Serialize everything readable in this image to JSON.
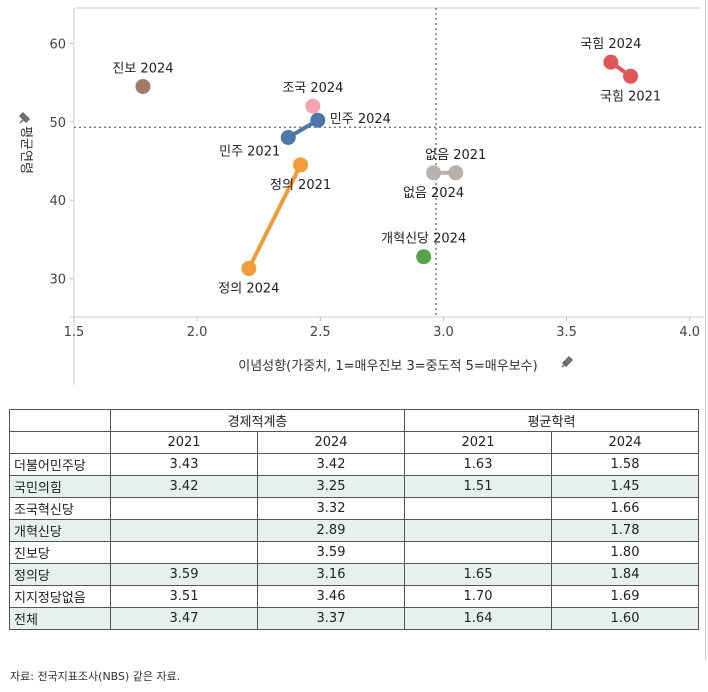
{
  "chart_data": {
    "type": "scatter",
    "xlabel": "이념성향(가중치, 1=매우진보 3=중도적 5=매우보수)",
    "ylabel": "평균연령",
    "xlim": [
      1.5,
      4.05
    ],
    "ylim": [
      25.5,
      64.5
    ],
    "xticks": [
      1.5,
      2.0,
      2.5,
      3.0,
      3.5,
      4.0
    ],
    "xtick_labels": [
      "1.5",
      "2.0",
      "2.5",
      "3.0",
      "3.5",
      "4.0"
    ],
    "yticks": [
      30,
      40,
      50,
      60
    ],
    "ytick_labels": [
      "30",
      "40",
      "50",
      "60"
    ],
    "ref_x": 2.97,
    "ref_y": 49.3,
    "grid": false,
    "points": [
      {
        "label": "진보 2024",
        "x": 1.78,
        "y": 54.5,
        "color": "#a27a68",
        "group": "jinbo",
        "label_pos": "above"
      },
      {
        "label": "조국 2024",
        "x": 2.47,
        "y": 52.0,
        "color": "#f5a3b0",
        "group": "jogook",
        "label_pos": "above"
      },
      {
        "label": "민주 2021",
        "x": 2.37,
        "y": 48.0,
        "color": "#4e76a8",
        "group": "minju",
        "label_pos": "below-left"
      },
      {
        "label": "민주 2024",
        "x": 2.49,
        "y": 50.2,
        "color": "#4e76a8",
        "group": "minju",
        "label_pos": "right"
      },
      {
        "label": "정의 2021",
        "x": 2.42,
        "y": 44.5,
        "color": "#f29b3b",
        "group": "jeongui",
        "label_pos": "below"
      },
      {
        "label": "정의 2024",
        "x": 2.21,
        "y": 31.3,
        "color": "#f29b3b",
        "group": "jeongui",
        "label_pos": "below"
      },
      {
        "label": "없음 2021",
        "x": 3.05,
        "y": 43.5,
        "color": "#bab0ab",
        "group": "none",
        "label_pos": "above"
      },
      {
        "label": "없음 2024",
        "x": 2.96,
        "y": 43.5,
        "color": "#bab0ab",
        "group": "none",
        "label_pos": "below"
      },
      {
        "label": "개혁신당 2024",
        "x": 2.92,
        "y": 32.8,
        "color": "#59a14f",
        "group": "reform",
        "label_pos": "above"
      },
      {
        "label": "국힘 2024",
        "x": 3.68,
        "y": 57.6,
        "color": "#e15759",
        "group": "ppp",
        "label_pos": "above"
      },
      {
        "label": "국힘 2021",
        "x": 3.76,
        "y": 55.8,
        "color": "#e15759",
        "group": "ppp",
        "label_pos": "below"
      }
    ]
  },
  "table": {
    "group_headers": [
      "경제적계층",
      "평균학력"
    ],
    "year_headers": [
      "2021",
      "2024",
      "2021",
      "2024"
    ],
    "rows": [
      {
        "party": "더불어민주당",
        "values": [
          "3.43",
          "3.42",
          "1.63",
          "1.58"
        ],
        "shaded": false
      },
      {
        "party": "국민의힘",
        "values": [
          "3.42",
          "3.25",
          "1.51",
          "1.45"
        ],
        "shaded": true
      },
      {
        "party": "조국혁신당",
        "values": [
          "",
          "3.32",
          "",
          "1.66"
        ],
        "shaded": false
      },
      {
        "party": "개혁신당",
        "values": [
          "",
          "2.89",
          "",
          "1.78"
        ],
        "shaded": true
      },
      {
        "party": "진보당",
        "values": [
          "",
          "3.59",
          "",
          "1.80"
        ],
        "shaded": false
      },
      {
        "party": "정의당",
        "values": [
          "3.59",
          "3.16",
          "1.65",
          "1.84"
        ],
        "shaded": true
      },
      {
        "party": "지지정당없음",
        "values": [
          "3.51",
          "3.46",
          "1.70",
          "1.69"
        ],
        "shaded": false
      },
      {
        "party": "전체",
        "values": [
          "3.47",
          "3.37",
          "1.64",
          "1.60"
        ],
        "shaded": true
      }
    ]
  },
  "source": "자료: 전국지표조사(NBS) 같은 자료."
}
